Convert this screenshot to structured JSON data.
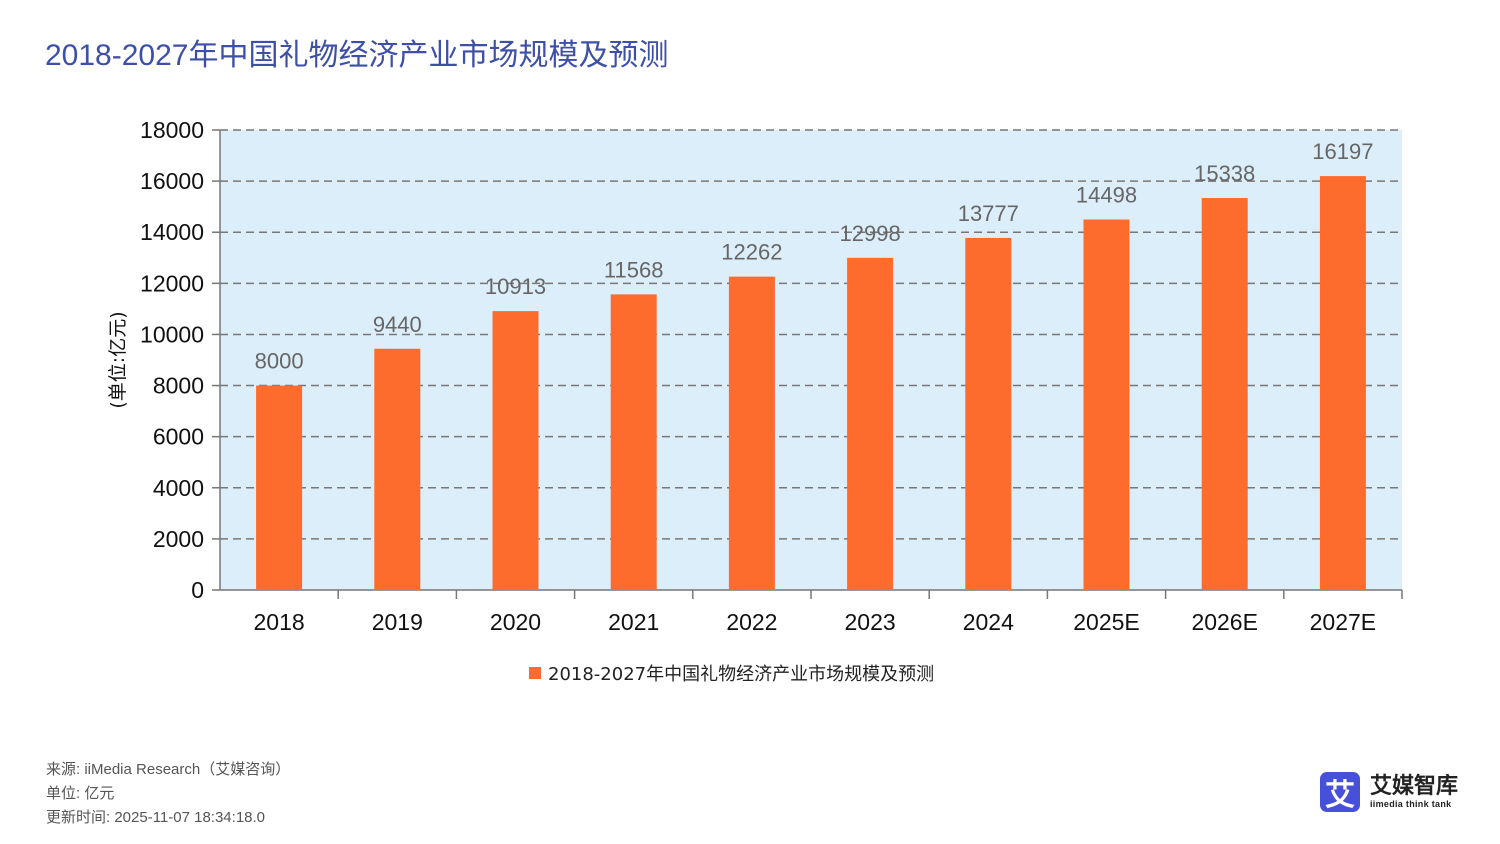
{
  "title": "2018-2027年中国礼物经济产业市场规模及预测",
  "chart_data": {
    "type": "bar",
    "categories": [
      "2018",
      "2019",
      "2020",
      "2021",
      "2022",
      "2023",
      "2024",
      "2025E",
      "2026E",
      "2027E"
    ],
    "series": [
      {
        "name": "2018-2027年中国礼物经济产业市场规模及预测",
        "values": [
          8000,
          9440,
          10913,
          11568,
          12262,
          12998,
          13777,
          14498,
          15338,
          16197
        ]
      }
    ],
    "ylabel": "(单位:亿元)",
    "ylim": [
      0,
      18000
    ],
    "yticks": [
      0,
      2000,
      4000,
      6000,
      8000,
      10000,
      12000,
      14000,
      16000,
      18000
    ],
    "grid": true,
    "legend": "bottom",
    "colors": {
      "bar": "#fd6c2d",
      "plot_bg": "#ddeefb"
    }
  },
  "footer": {
    "source": "来源: iiMedia Research（艾媒咨询）",
    "unit": "单位: 亿元",
    "updated": "更新时间: 2025-11-07 18:34:18.0"
  },
  "logo": {
    "mark": "艾",
    "name": "艾媒智库",
    "tagline": "iimedia think tank"
  }
}
